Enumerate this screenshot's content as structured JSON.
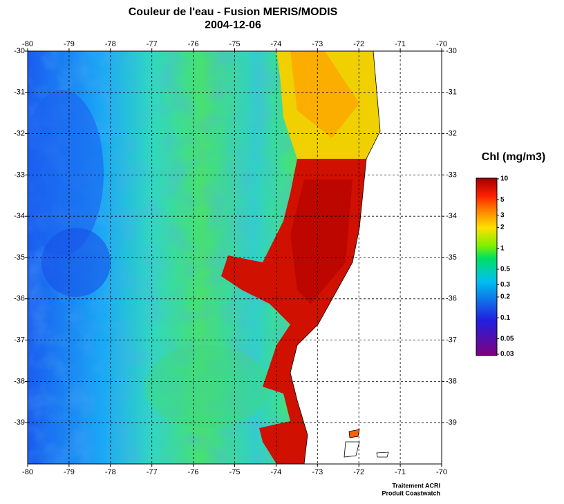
{
  "title": "Couleur de l'eau - Fusion MERIS/MODIS",
  "date": "2004-12-06",
  "map": {
    "xlim": [
      -80,
      -70
    ],
    "ylim": [
      -40,
      -30
    ],
    "xticks": [
      -80,
      -79,
      -78,
      -77,
      -76,
      -75,
      -74,
      -73,
      -72,
      -71,
      -70
    ],
    "yticks": [
      -30,
      -31,
      -32,
      -33,
      -34,
      -35,
      -36,
      -37,
      -38,
      -39
    ]
  },
  "colorbar": {
    "title": "Chl (mg/m3)",
    "log": true,
    "lim": [
      0.03,
      10
    ],
    "ticks": [
      10,
      5,
      3,
      2,
      1,
      0.5,
      0.3,
      0.2,
      0.1,
      0.05,
      0.03
    ]
  },
  "credits": [
    "Traitement ACRI",
    "Produit Coastwatch"
  ]
}
